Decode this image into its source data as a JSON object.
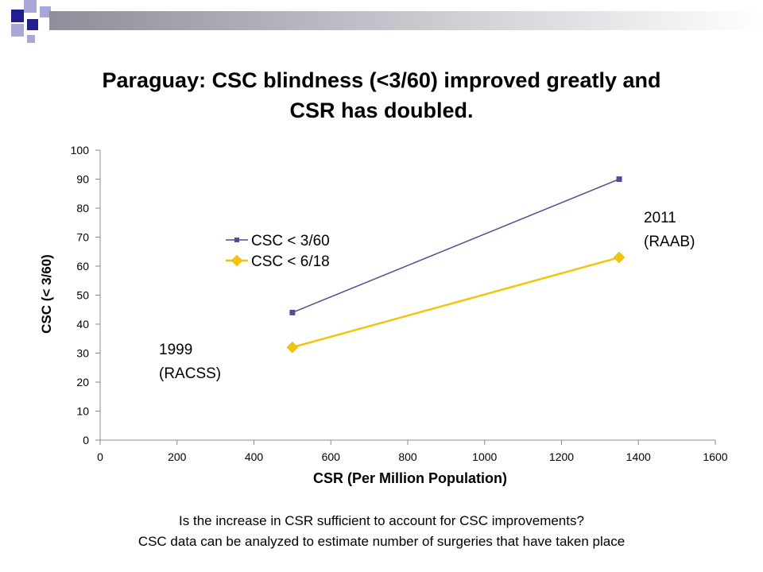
{
  "slide": {
    "title_line1": "Paraguay: CSC blindness (<3/60) improved greatly and",
    "title_line2": "CSR has doubled.",
    "caption_line1": "Is the increase in CSR sufficient to account for CSC improvements?",
    "caption_line2": "CSC data can be analyzed to estimate number of surgeries that have taken place"
  },
  "colors": {
    "deco_dark": "#1f1f8f",
    "deco_light": "#a8a8d8",
    "band": "#9e9eaa",
    "series1": "#4f4f8f",
    "series2": "#f2c410",
    "axis": "#8c8c8c"
  },
  "chart_data": {
    "type": "scatter",
    "xlabel": "CSR (Per Million Population)",
    "ylabel": "CSC (< 3/60)",
    "xlim": [
      0,
      1600
    ],
    "ylim": [
      0,
      100
    ],
    "xticks": [
      0,
      200,
      400,
      600,
      800,
      1000,
      1200,
      1400,
      1600
    ],
    "yticks": [
      0,
      10,
      20,
      30,
      40,
      50,
      60,
      70,
      80,
      90,
      100
    ],
    "grid": false,
    "legend_position": "upper-left",
    "series": [
      {
        "name": "CSC < 3/60",
        "marker": "square",
        "points": [
          [
            500,
            44
          ],
          [
            1350,
            90
          ]
        ]
      },
      {
        "name": "CSC < 6/18",
        "marker": "diamond",
        "points": [
          [
            500,
            32
          ],
          [
            1350,
            63
          ]
        ]
      }
    ],
    "annotations": [
      {
        "line1": "1999",
        "line2": "(RACSS)"
      },
      {
        "line1": "2011",
        "line2": "(RAAB)"
      }
    ]
  }
}
